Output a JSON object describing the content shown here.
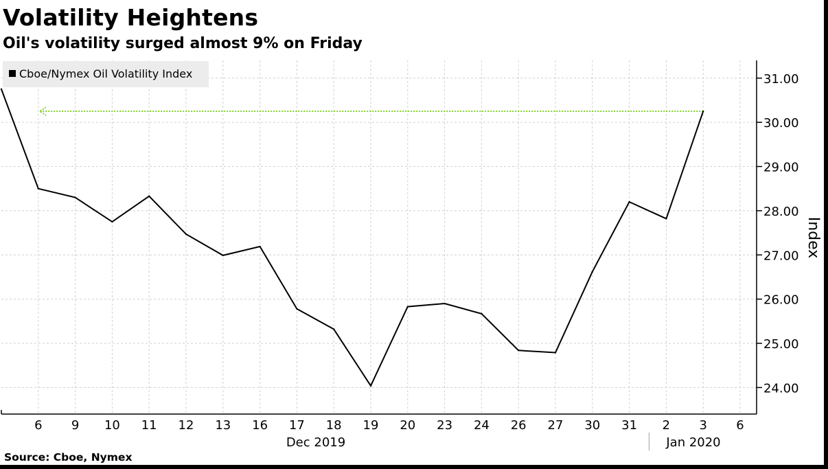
{
  "title": "Volatility Heightens",
  "subtitle": "Oil's volatility surged almost 9% on Friday",
  "source": "Source: Cboe, Nymex",
  "colors": {
    "series": "#000000",
    "annotation": "#7fd12a",
    "grid": "#cfcfcf",
    "legend_bg": "#ececec"
  },
  "chart_data": {
    "type": "line",
    "legend_position": "top-left",
    "grid": true,
    "ylabel": "Index",
    "ylim": [
      23.4,
      31.4
    ],
    "y_axis_side": "right",
    "yticks": [
      "31.00",
      "30.00",
      "29.00",
      "28.00",
      "27.00",
      "26.00",
      "25.00",
      "24.00"
    ],
    "x_tick_labels": [
      "6",
      "9",
      "10",
      "11",
      "12",
      "13",
      "16",
      "17",
      "18",
      "19",
      "20",
      "23",
      "24",
      "26",
      "27",
      "30",
      "31",
      "2",
      "3",
      "6"
    ],
    "period_labels": [
      "Dec 2019",
      "Jan 2020"
    ],
    "series": [
      {
        "name": "Cboe/Nymex Oil Volatility Index",
        "x": [
          "Dec 5",
          "Dec 6",
          "Dec 9",
          "Dec 10",
          "Dec 11",
          "Dec 12",
          "Dec 13",
          "Dec 16",
          "Dec 17",
          "Dec 18",
          "Dec 19",
          "Dec 20",
          "Dec 23",
          "Dec 24",
          "Dec 26",
          "Dec 27",
          "Dec 30",
          "Dec 31",
          "Jan 2",
          "Jan 3"
        ],
        "values": [
          30.75,
          28.5,
          28.3,
          27.75,
          28.33,
          27.47,
          26.99,
          27.19,
          25.78,
          25.32,
          24.04,
          25.83,
          25.9,
          25.67,
          24.84,
          24.79,
          26.62,
          28.2,
          27.82,
          30.25
        ]
      }
    ],
    "annotations": [
      {
        "type": "arrow",
        "style": "dotted",
        "direction": "left",
        "value": 30.25
      }
    ]
  }
}
